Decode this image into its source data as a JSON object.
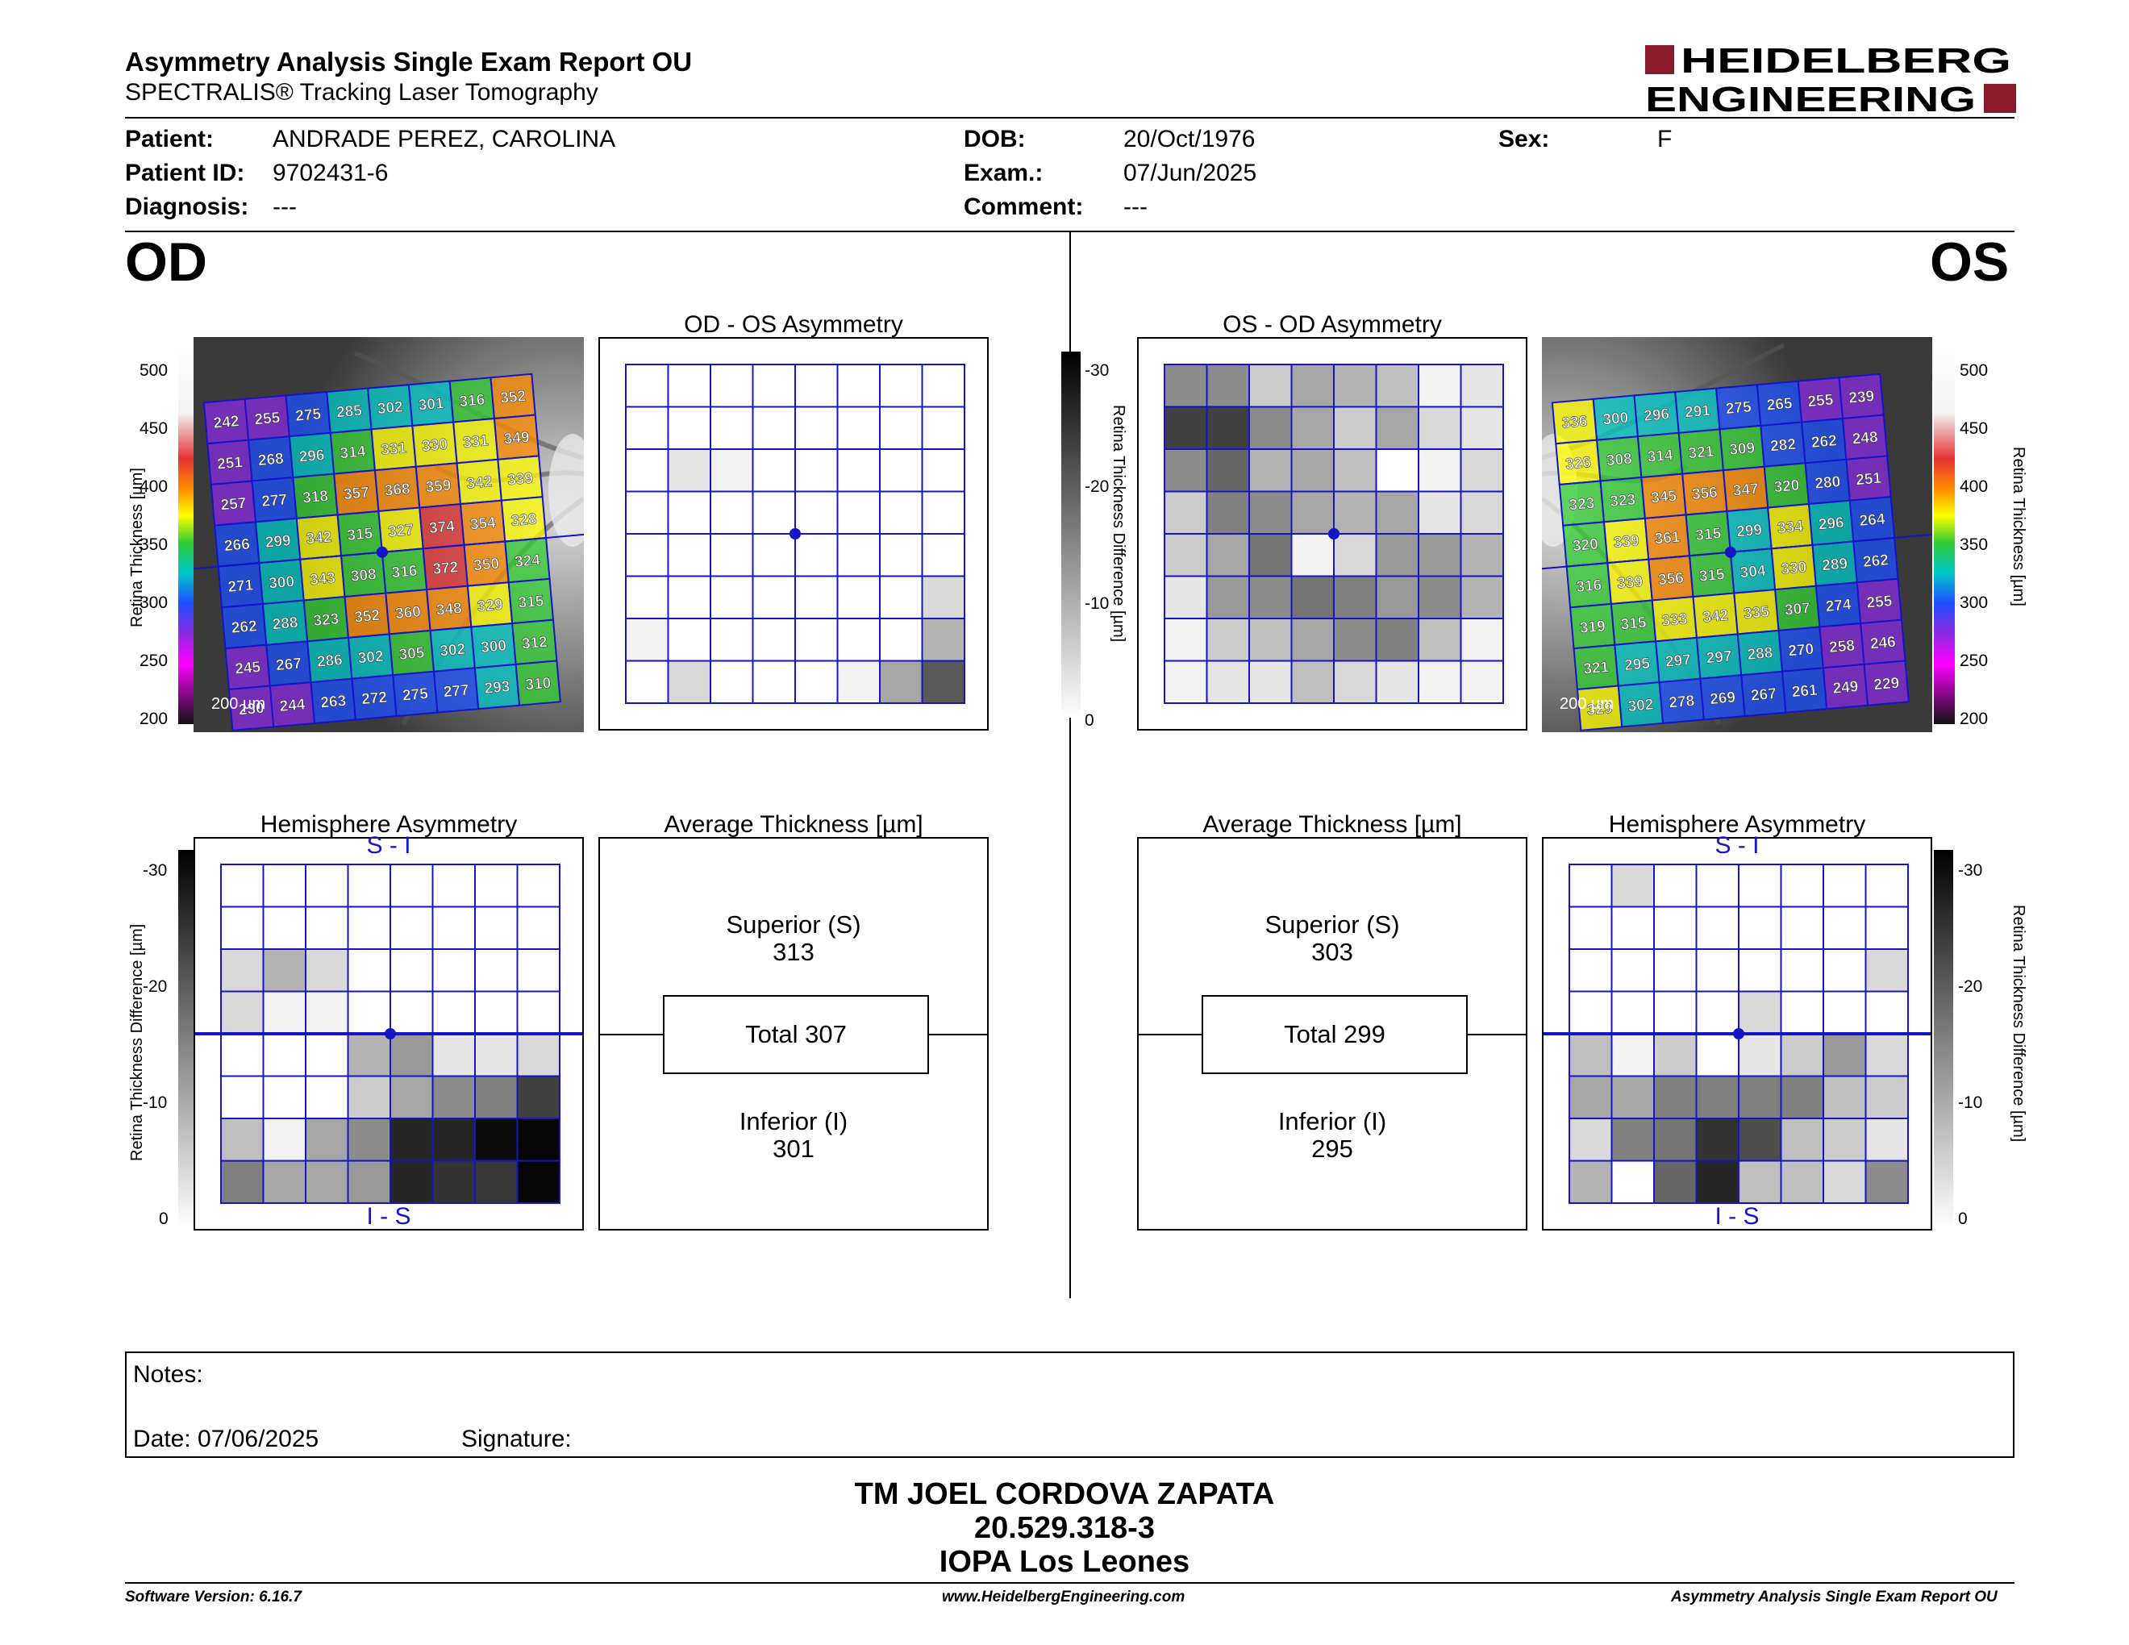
{
  "header": {
    "title": "Asymmetry Analysis Single Exam Report OU",
    "subtitle": "SPECTRALIS® Tracking Laser Tomography",
    "logo_line1": "HEIDELBERG",
    "logo_line2": "ENGINEERING"
  },
  "patient": {
    "patient_label": "Patient:",
    "patient_value": "ANDRADE PEREZ, CAROLINA",
    "id_label": "Patient ID:",
    "id_value": "9702431-6",
    "diagnosis_label": "Diagnosis:",
    "diagnosis_value": "---",
    "dob_label": "DOB:",
    "dob_value": "20/Oct/1976",
    "exam_label": "Exam.:",
    "exam_value": "07/Jun/2025",
    "comment_label": "Comment:",
    "comment_value": "---",
    "sex_label": "Sex:",
    "sex_value": "F"
  },
  "od": {
    "eye_label": "OD",
    "asym_title": "OD - OS Asymmetry",
    "hemi_title": "Hemisphere Asymmetry",
    "hemi_top": "S - I",
    "hemi_bottom": "I - S",
    "avg_title": "Average Thickness [µm]",
    "superior_label": "Superior (S)",
    "superior_value": "313",
    "total_label": "Total 307",
    "inferior_label": "Inferior (I)",
    "inferior_value": "301",
    "scale_text": "200 µm",
    "thickness": [
      [
        242,
        255,
        275,
        285,
        302,
        301,
        316,
        352
      ],
      [
        251,
        268,
        296,
        314,
        331,
        330,
        331,
        349
      ],
      [
        257,
        277,
        318,
        357,
        368,
        359,
        342,
        339
      ],
      [
        266,
        299,
        342,
        315,
        327,
        374,
        354,
        328
      ],
      [
        271,
        300,
        343,
        308,
        316,
        372,
        350,
        324
      ],
      [
        262,
        288,
        323,
        352,
        360,
        348,
        329,
        315
      ],
      [
        245,
        267,
        286,
        302,
        305,
        302,
        300,
        312
      ],
      [
        230,
        244,
        263,
        272,
        275,
        277,
        293,
        310
      ]
    ],
    "asym_gray": [
      [
        0,
        0,
        0,
        0,
        0,
        0,
        0,
        0
      ],
      [
        0,
        0,
        0,
        0,
        0,
        0,
        0,
        0
      ],
      [
        0,
        0.1,
        0.05,
        0,
        0,
        0,
        0,
        0
      ],
      [
        0,
        0,
        0,
        0,
        0,
        0,
        0,
        0
      ],
      [
        0,
        0,
        0,
        0,
        0,
        0,
        0,
        0
      ],
      [
        0,
        0,
        0,
        0,
        0,
        0,
        0,
        0.15
      ],
      [
        0.05,
        0,
        0,
        0,
        0,
        0,
        0,
        0.3
      ],
      [
        0,
        0.15,
        0,
        0,
        0,
        0.05,
        0.35,
        0.65
      ]
    ],
    "hemi_gray": [
      [
        0,
        0,
        0,
        0,
        0,
        0,
        0,
        0
      ],
      [
        0,
        0,
        0,
        0,
        0,
        0,
        0,
        0
      ],
      [
        0.15,
        0.3,
        0.15,
        0,
        0,
        0,
        0,
        0
      ],
      [
        0.15,
        0.05,
        0.05,
        0,
        0,
        0,
        0,
        0
      ],
      [
        0,
        0,
        0,
        0.3,
        0.4,
        0.1,
        0.1,
        0.15
      ],
      [
        0,
        0,
        0,
        0.2,
        0.35,
        0.45,
        0.5,
        0.75
      ],
      [
        0.25,
        0.05,
        0.35,
        0.45,
        0.85,
        0.85,
        0.95,
        0.98
      ],
      [
        0.5,
        0.35,
        0.35,
        0.4,
        0.85,
        0.8,
        0.78,
        0.98
      ]
    ]
  },
  "os": {
    "eye_label": "OS",
    "asym_title": "OS - OD Asymmetry",
    "hemi_title": "Hemisphere Asymmetry",
    "hemi_top": "S - I",
    "hemi_bottom": "I - S",
    "avg_title": "Average Thickness [µm]",
    "superior_label": "Superior (S)",
    "superior_value": "303",
    "total_label": "Total 299",
    "inferior_label": "Inferior (I)",
    "inferior_value": "295",
    "scale_text": "200 µm",
    "thickness": [
      [
        336,
        300,
        296,
        291,
        275,
        265,
        255,
        239
      ],
      [
        326,
        308,
        314,
        321,
        309,
        282,
        262,
        248
      ],
      [
        323,
        323,
        345,
        356,
        347,
        320,
        280,
        251
      ],
      [
        320,
        339,
        361,
        315,
        299,
        334,
        296,
        264
      ],
      [
        316,
        339,
        356,
        315,
        304,
        330,
        289,
        262
      ],
      [
        319,
        315,
        333,
        342,
        335,
        307,
        274,
        255
      ],
      [
        321,
        295,
        297,
        297,
        288,
        270,
        258,
        246
      ],
      [
        329,
        302,
        278,
        269,
        267,
        261,
        249,
        229
      ]
    ],
    "asym_gray": [
      [
        0.45,
        0.45,
        0.2,
        0.35,
        0.3,
        0.25,
        0.05,
        0.1
      ],
      [
        0.75,
        0.75,
        0.45,
        0.35,
        0.2,
        0.35,
        0.15,
        0.1
      ],
      [
        0.45,
        0.6,
        0.3,
        0.35,
        0.25,
        0,
        0.05,
        0.15
      ],
      [
        0.2,
        0.5,
        0.45,
        0.35,
        0.3,
        0.35,
        0.1,
        0.15
      ],
      [
        0.2,
        0.35,
        0.55,
        0.05,
        0.15,
        0.4,
        0.4,
        0.3
      ],
      [
        0.1,
        0.4,
        0.45,
        0.55,
        0.5,
        0.4,
        0.45,
        0.3
      ],
      [
        0.05,
        0.2,
        0.25,
        0.35,
        0.45,
        0.5,
        0.25,
        0.05
      ],
      [
        0.05,
        0.1,
        0.1,
        0.25,
        0.15,
        0.1,
        0.05,
        0.05
      ]
    ],
    "hemi_gray": [
      [
        0,
        0.15,
        0,
        0,
        0,
        0,
        0,
        0
      ],
      [
        0,
        0,
        0,
        0,
        0,
        0,
        0,
        0
      ],
      [
        0,
        0,
        0,
        0,
        0,
        0,
        0,
        0.15
      ],
      [
        0,
        0,
        0,
        0,
        0.15,
        0,
        0,
        0
      ],
      [
        0.25,
        0.05,
        0.2,
        0,
        0.1,
        0.2,
        0.4,
        0.15
      ],
      [
        0.35,
        0.35,
        0.5,
        0.5,
        0.5,
        0.5,
        0.25,
        0.2
      ],
      [
        0.15,
        0.5,
        0.55,
        0.8,
        0.7,
        0.25,
        0.2,
        0.1
      ],
      [
        0.3,
        0,
        0.6,
        0.85,
        0.25,
        0.25,
        0.15,
        0.45
      ]
    ]
  },
  "colorbar": {
    "thickness_label": "Retina Thickness [µm]",
    "thickness_ticks": [
      "500",
      "450",
      "400",
      "350",
      "300",
      "250",
      "200"
    ],
    "diff_label": "Retina Thickness Difference [µm]",
    "diff_ticks": [
      "-30",
      "-20",
      "-10",
      "0"
    ]
  },
  "notes": {
    "notes_label": "Notes:",
    "date_label": "Date: 07/06/2025",
    "signature_label": "Signature:"
  },
  "signature": {
    "line1": "TM JOEL CORDOVA ZAPATA",
    "line2": "20.529.318-3",
    "line3": "IOPA Los Leones"
  },
  "footer": {
    "software": "Software Version: 6.16.7",
    "website": "www.HeidelbergEngineering.com",
    "report": "Asymmetry Analysis Single Exam Report OU"
  },
  "colors": {
    "grid_blue": "#1515c8",
    "logo_red": "#8b1a2b"
  }
}
